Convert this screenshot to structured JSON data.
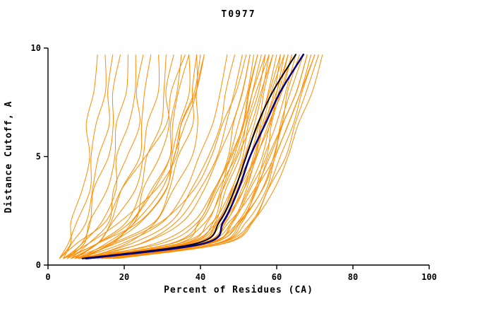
{
  "chart_data": {
    "type": "line",
    "title": "T0977",
    "xlabel": "Percent of Residues (CA)",
    "ylabel": "Distance Cutoff, A",
    "xlim": [
      0,
      100
    ],
    "ylim": [
      0,
      10
    ],
    "xticks": [
      0,
      20,
      40,
      60,
      80,
      100
    ],
    "yticks": [
      0,
      5,
      10
    ],
    "grid": false,
    "legend": "none",
    "colors": {
      "predictions": "#FF8C00",
      "highlight_navy": "#000080",
      "highlight_black": "#000000",
      "axis": "#000000",
      "background": "#FFFFFF"
    },
    "y_levels": [
      0.3,
      1,
      2,
      3.5,
      5,
      6.5,
      8,
      9.7
    ],
    "prediction_xs": [
      [
        3,
        5,
        7,
        9,
        10,
        11,
        12,
        13
      ],
      [
        3,
        6,
        8,
        10,
        12,
        13,
        14,
        15
      ],
      [
        4,
        7,
        9,
        12,
        14,
        15,
        16,
        17
      ],
      [
        4,
        8,
        11,
        13,
        15,
        17,
        18,
        19
      ],
      [
        5,
        9,
        12,
        15,
        17,
        19,
        20,
        21
      ],
      [
        5,
        10,
        14,
        17,
        19,
        21,
        22,
        23
      ],
      [
        6,
        11,
        15,
        18,
        21,
        23,
        24,
        25
      ],
      [
        6,
        12,
        17,
        20,
        23,
        25,
        26,
        27
      ],
      [
        7,
        13,
        18,
        22,
        25,
        27,
        28,
        29
      ],
      [
        7,
        14,
        20,
        24,
        27,
        29,
        30,
        31
      ],
      [
        8,
        15,
        22,
        26,
        29,
        31,
        32,
        33
      ],
      [
        8,
        16,
        23,
        28,
        31,
        33,
        34,
        35
      ],
      [
        9,
        17,
        25,
        30,
        33,
        35,
        36,
        37
      ],
      [
        9,
        18,
        27,
        32,
        35,
        37,
        38,
        39
      ],
      [
        10,
        20,
        28,
        34,
        37,
        39,
        40,
        41
      ],
      [
        4,
        10,
        20,
        28,
        33,
        36,
        38,
        40
      ],
      [
        5,
        14,
        24,
        30,
        34,
        36,
        38,
        39
      ],
      [
        3,
        8,
        14,
        20,
        26,
        30,
        33,
        36
      ],
      [
        4,
        12,
        22,
        28,
        31,
        33,
        35,
        37
      ],
      [
        6,
        16,
        24,
        29,
        33,
        36,
        38,
        41
      ],
      [
        8,
        20,
        30,
        36,
        40,
        43,
        45,
        47
      ],
      [
        9,
        22,
        32,
        38,
        42,
        45,
        47,
        49
      ],
      [
        10,
        24,
        34,
        40,
        44,
        47,
        49,
        51
      ],
      [
        7,
        18,
        30,
        38,
        43,
        46,
        49,
        52
      ],
      [
        8,
        25,
        35,
        41,
        45,
        48,
        51,
        53
      ],
      [
        10,
        28,
        38,
        44,
        48,
        51,
        53,
        55
      ],
      [
        8,
        34,
        40,
        44,
        47,
        49,
        51,
        53
      ],
      [
        9,
        36,
        42,
        45,
        48,
        50,
        52,
        54
      ],
      [
        9,
        37,
        43,
        46,
        49,
        51,
        53,
        55
      ],
      [
        10,
        38,
        44,
        47,
        50,
        52,
        54,
        56
      ],
      [
        10,
        38,
        45,
        48,
        51,
        53,
        55,
        57
      ],
      [
        11,
        39,
        45,
        49,
        52,
        54,
        56,
        58
      ],
      [
        11,
        40,
        46,
        50,
        53,
        55,
        57,
        59
      ],
      [
        12,
        40,
        47,
        51,
        54,
        56,
        58,
        60
      ],
      [
        12,
        41,
        47,
        51,
        54,
        57,
        59,
        61
      ],
      [
        13,
        41,
        48,
        52,
        55,
        58,
        60,
        62
      ],
      [
        13,
        42,
        48,
        53,
        56,
        58,
        61,
        63
      ],
      [
        14,
        42,
        49,
        53,
        57,
        59,
        61,
        64
      ],
      [
        14,
        43,
        50,
        54,
        57,
        60,
        62,
        65
      ],
      [
        15,
        43,
        50,
        55,
        58,
        61,
        63,
        66
      ],
      [
        15,
        44,
        51,
        55,
        59,
        61,
        64,
        67
      ],
      [
        16,
        44,
        51,
        56,
        59,
        62,
        65,
        68
      ],
      [
        16,
        45,
        52,
        57,
        60,
        63,
        66,
        69
      ],
      [
        17,
        45,
        53,
        58,
        61,
        64,
        67,
        70
      ],
      [
        17,
        46,
        54,
        58,
        62,
        65,
        68,
        71
      ],
      [
        18,
        46,
        54,
        59,
        63,
        66,
        69,
        72
      ],
      [
        10,
        35,
        43,
        48,
        52,
        55,
        58,
        61
      ],
      [
        11,
        36,
        44,
        49,
        53,
        56,
        59,
        62
      ],
      [
        12,
        37,
        45,
        50,
        54,
        57,
        60,
        63
      ],
      [
        13,
        39,
        46,
        51,
        55,
        58,
        61,
        64
      ],
      [
        9,
        33,
        41,
        46,
        50,
        53,
        56,
        59
      ],
      [
        8,
        32,
        40,
        45,
        49,
        52,
        55,
        58
      ],
      [
        14,
        40,
        48,
        54,
        58,
        62,
        65,
        68
      ],
      [
        15,
        42,
        50,
        56,
        60,
        63,
        66,
        70
      ],
      [
        7,
        30,
        39,
        44,
        48,
        51,
        54,
        57
      ]
    ],
    "highlight_series": [
      {
        "name": "highlighted-model-black",
        "color": "#000000",
        "width": 2.0,
        "xs": [
          9,
          39,
          45,
          49,
          52,
          55,
          59,
          65
        ]
      },
      {
        "name": "highlighted-model-navy",
        "color": "#000080",
        "width": 2.5,
        "xs": [
          10,
          41,
          46,
          50,
          53,
          57,
          61,
          67
        ]
      }
    ]
  }
}
